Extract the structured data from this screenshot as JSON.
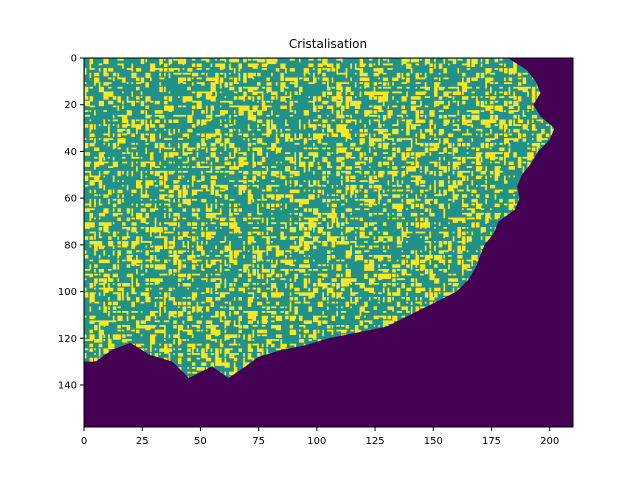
{
  "chart_data": {
    "type": "heatmap",
    "title": "Cristalisation",
    "xlabel": "",
    "ylabel": "",
    "xlim": [
      0,
      210
    ],
    "ylim": [
      158,
      0
    ],
    "grid": false,
    "x_ticks": [
      0,
      25,
      50,
      75,
      100,
      125,
      150,
      175,
      200
    ],
    "y_ticks": [
      0,
      20,
      40,
      60,
      80,
      100,
      120,
      140
    ],
    "colors": {
      "empty": "#440154",
      "boundary": "#21918c",
      "crystal": "#fde725"
    },
    "crystal_front": [
      {
        "row": 0,
        "col": 182
      },
      {
        "row": 5,
        "col": 190
      },
      {
        "row": 10,
        "col": 194
      },
      {
        "row": 15,
        "col": 196
      },
      {
        "row": 20,
        "col": 193
      },
      {
        "row": 25,
        "col": 196
      },
      {
        "row": 30,
        "col": 202
      },
      {
        "row": 35,
        "col": 200
      },
      {
        "row": 40,
        "col": 195
      },
      {
        "row": 45,
        "col": 192
      },
      {
        "row": 50,
        "col": 188
      },
      {
        "row": 55,
        "col": 186
      },
      {
        "row": 60,
        "col": 187
      },
      {
        "row": 65,
        "col": 185
      },
      {
        "row": 70,
        "col": 178
      },
      {
        "row": 75,
        "col": 176
      },
      {
        "row": 80,
        "col": 172
      },
      {
        "row": 85,
        "col": 170
      },
      {
        "row": 90,
        "col": 168
      },
      {
        "row": 95,
        "col": 165
      },
      {
        "row": 100,
        "col": 160
      },
      {
        "row": 105,
        "col": 150
      },
      {
        "row": 110,
        "col": 140
      },
      {
        "row": 115,
        "col": 130
      },
      {
        "row": 118,
        "col": 115
      },
      {
        "row": 120,
        "col": 105
      },
      {
        "row": 123,
        "col": 95
      },
      {
        "row": 125,
        "col": 85
      },
      {
        "row": 128,
        "col": 75
      },
      {
        "row": 133,
        "col": 68
      },
      {
        "row": 137,
        "col": 62
      },
      {
        "row": 132,
        "col": 55
      },
      {
        "row": 137,
        "col": 45
      },
      {
        "row": 130,
        "col": 38
      },
      {
        "row": 127,
        "col": 28
      },
      {
        "row": 122,
        "col": 20
      },
      {
        "row": 125,
        "col": 12
      },
      {
        "row": 130,
        "col": 5
      },
      {
        "row": 130,
        "col": 0
      }
    ]
  }
}
